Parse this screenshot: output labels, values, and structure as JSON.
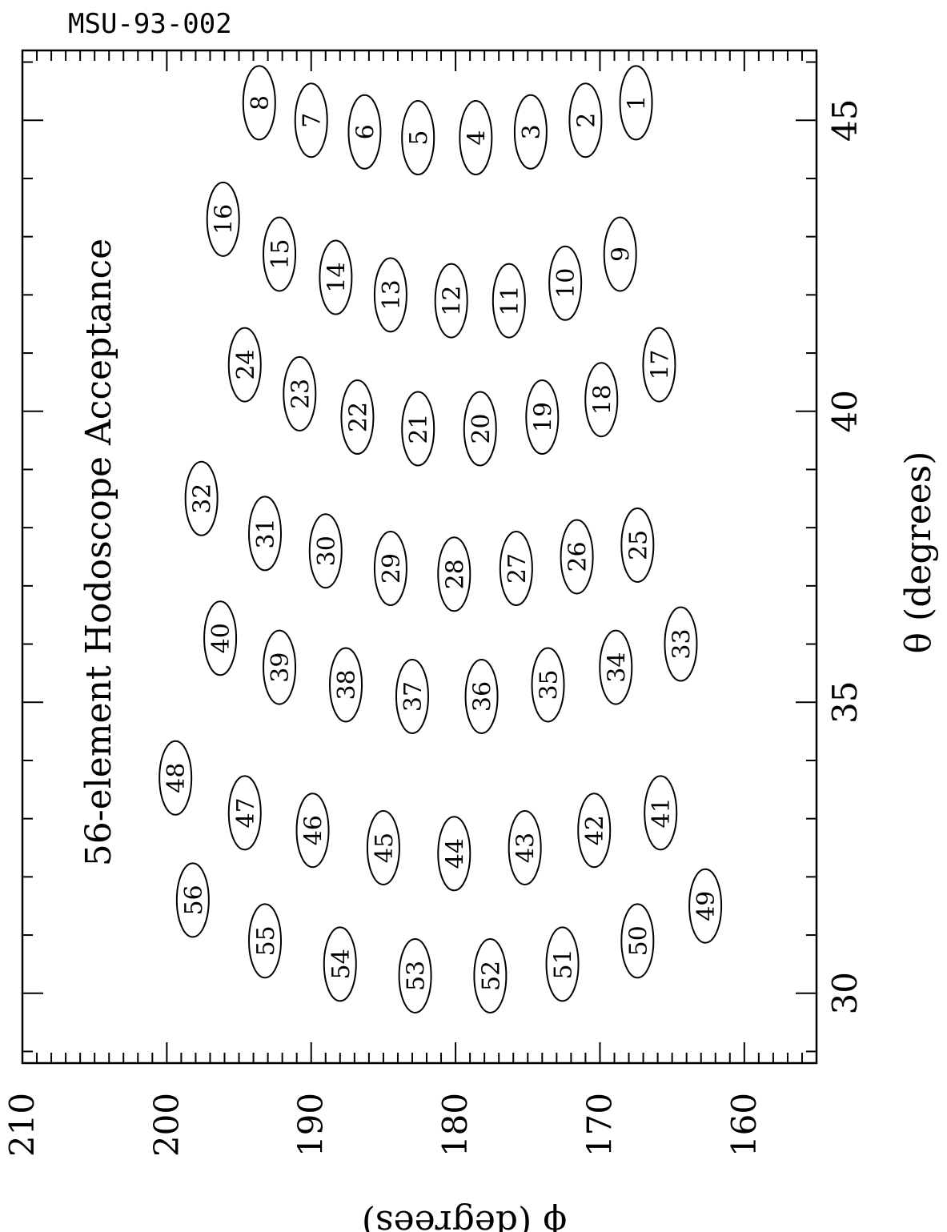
{
  "document_id": "MSU-93-002",
  "chart_data": {
    "type": "scatter",
    "title": "56-element Hodoscope Acceptance",
    "xlabel": "θ (degrees)",
    "ylabel": "ϕ (degrees)",
    "xlim": [
      28.8,
      46.2
    ],
    "ylim": [
      155,
      210
    ],
    "x_ticks": [
      30,
      35,
      40,
      45
    ],
    "y_ticks": [
      160,
      170,
      180,
      190,
      200,
      210
    ],
    "grid": false,
    "marker": "ellipse",
    "elements": [
      {
        "label": "1",
        "theta": 45.3,
        "phi": 167.5
      },
      {
        "label": "2",
        "theta": 45.0,
        "phi": 171.0
      },
      {
        "label": "3",
        "theta": 44.8,
        "phi": 174.8
      },
      {
        "label": "4",
        "theta": 44.7,
        "phi": 178.6
      },
      {
        "label": "5",
        "theta": 44.7,
        "phi": 182.6
      },
      {
        "label": "6",
        "theta": 44.8,
        "phi": 186.3
      },
      {
        "label": "7",
        "theta": 45.0,
        "phi": 190.0
      },
      {
        "label": "8",
        "theta": 45.3,
        "phi": 193.6
      },
      {
        "label": "9",
        "theta": 42.7,
        "phi": 168.6
      },
      {
        "label": "10",
        "theta": 42.2,
        "phi": 172.4
      },
      {
        "label": "11",
        "theta": 41.9,
        "phi": 176.3
      },
      {
        "label": "12",
        "theta": 41.9,
        "phi": 180.3
      },
      {
        "label": "13",
        "theta": 42.0,
        "phi": 184.5
      },
      {
        "label": "14",
        "theta": 42.3,
        "phi": 188.3
      },
      {
        "label": "15",
        "theta": 42.7,
        "phi": 192.2
      },
      {
        "label": "16",
        "theta": 43.3,
        "phi": 196.1
      },
      {
        "label": "17",
        "theta": 40.8,
        "phi": 165.9
      },
      {
        "label": "18",
        "theta": 40.2,
        "phi": 169.9
      },
      {
        "label": "19",
        "theta": 39.9,
        "phi": 174.0
      },
      {
        "label": "20",
        "theta": 39.7,
        "phi": 178.3
      },
      {
        "label": "21",
        "theta": 39.7,
        "phi": 182.6
      },
      {
        "label": "22",
        "theta": 39.9,
        "phi": 186.8
      },
      {
        "label": "23",
        "theta": 40.3,
        "phi": 190.8
      },
      {
        "label": "24",
        "theta": 40.8,
        "phi": 194.6
      },
      {
        "label": "25",
        "theta": 37.7,
        "phi": 167.4
      },
      {
        "label": "26",
        "theta": 37.5,
        "phi": 171.6
      },
      {
        "label": "27",
        "theta": 37.3,
        "phi": 175.8
      },
      {
        "label": "28",
        "theta": 37.2,
        "phi": 180.1
      },
      {
        "label": "29",
        "theta": 37.3,
        "phi": 184.5
      },
      {
        "label": "30",
        "theta": 37.6,
        "phi": 189.0
      },
      {
        "label": "31",
        "theta": 37.9,
        "phi": 193.2
      },
      {
        "label": "32",
        "theta": 38.5,
        "phi": 197.6
      },
      {
        "label": "33",
        "theta": 36.0,
        "phi": 164.4
      },
      {
        "label": "34",
        "theta": 35.6,
        "phi": 168.9
      },
      {
        "label": "35",
        "theta": 35.3,
        "phi": 173.6
      },
      {
        "label": "36",
        "theta": 35.1,
        "phi": 178.2
      },
      {
        "label": "37",
        "theta": 35.1,
        "phi": 183.0
      },
      {
        "label": "38",
        "theta": 35.3,
        "phi": 187.6
      },
      {
        "label": "39",
        "theta": 35.6,
        "phi": 192.2
      },
      {
        "label": "40",
        "theta": 36.1,
        "phi": 196.3
      },
      {
        "label": "41",
        "theta": 33.1,
        "phi": 165.8
      },
      {
        "label": "42",
        "theta": 32.8,
        "phi": 170.4
      },
      {
        "label": "43",
        "theta": 32.5,
        "phi": 175.2
      },
      {
        "label": "44",
        "theta": 32.4,
        "phi": 180.1
      },
      {
        "label": "45",
        "theta": 32.5,
        "phi": 185.0
      },
      {
        "label": "46",
        "theta": 32.8,
        "phi": 189.9
      },
      {
        "label": "47",
        "theta": 33.1,
        "phi": 194.6
      },
      {
        "label": "48",
        "theta": 33.7,
        "phi": 199.4
      },
      {
        "label": "49",
        "theta": 31.5,
        "phi": 162.7
      },
      {
        "label": "50",
        "theta": 30.9,
        "phi": 167.4
      },
      {
        "label": "51",
        "theta": 30.5,
        "phi": 172.6
      },
      {
        "label": "52",
        "theta": 30.3,
        "phi": 177.6
      },
      {
        "label": "53",
        "theta": 30.3,
        "phi": 182.8
      },
      {
        "label": "54",
        "theta": 30.5,
        "phi": 188.0
      },
      {
        "label": "55",
        "theta": 30.9,
        "phi": 193.2
      },
      {
        "label": "56",
        "theta": 31.6,
        "phi": 198.2
      }
    ]
  }
}
